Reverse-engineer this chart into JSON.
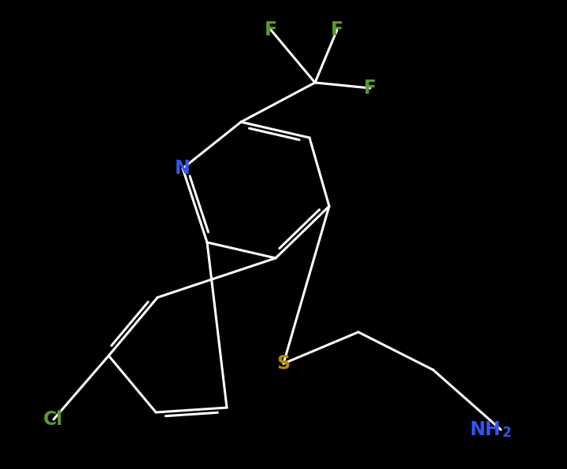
{
  "background_color": "#000000",
  "bond_color": "#ffffff",
  "bond_width": 2.2,
  "atom_labels": {
    "N": {
      "color": "#3355ee",
      "fontsize": 17,
      "fontweight": "bold"
    },
    "F": {
      "color": "#5a9a2a",
      "fontsize": 17,
      "fontweight": "bold"
    },
    "S": {
      "color": "#b88a00",
      "fontsize": 17,
      "fontweight": "bold"
    },
    "Cl": {
      "color": "#5a9a2a",
      "fontsize": 17,
      "fontweight": "bold"
    },
    "NH2": {
      "color": "#3355ee",
      "fontsize": 17,
      "fontweight": "bold"
    }
  },
  "figsize": [
    7.2,
    5.96
  ],
  "dpi": 100
}
